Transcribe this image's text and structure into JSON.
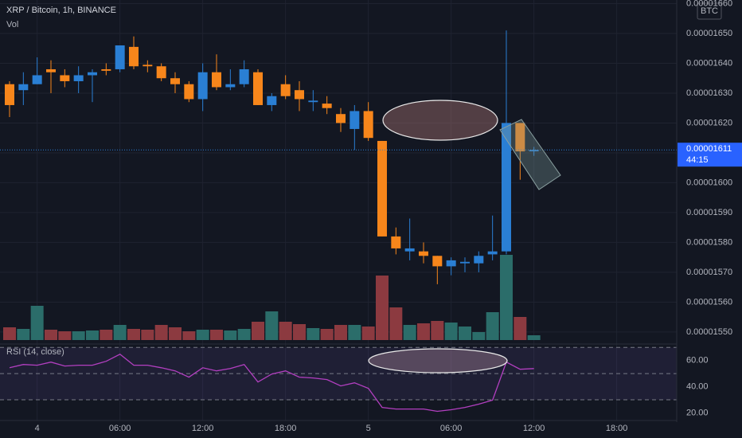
{
  "chart_data": {
    "type": "candlestick",
    "title": "XRP / Bitcoin, 1h, BINANCE",
    "volume_label": "Vol",
    "currency": "BTC",
    "up_color": "#2a7fd4",
    "down_color": "#f7861b",
    "volume_up_color": "#2b6d6a",
    "volume_down_color": "#8c3a40",
    "categories": [
      null,
      null,
      "4",
      null,
      null,
      null,
      null,
      null,
      "06:00",
      null,
      null,
      null,
      null,
      null,
      "12:00",
      null,
      null,
      null,
      null,
      null,
      "18:00",
      null,
      null,
      null,
      null,
      null,
      "5",
      null,
      null,
      null,
      null,
      null,
      "06:00",
      null,
      null,
      null,
      null,
      null,
      "12:00",
      null,
      null,
      null,
      null,
      null,
      "18:00"
    ],
    "open": [
      1.633e-05,
      1.631e-05,
      1.633e-05,
      1.638e-05,
      1.636e-05,
      1.634e-05,
      1.636e-05,
      1.638e-05,
      1.638e-05,
      1.6455e-05,
      1.6395e-05,
      1.639e-05,
      1.635e-05,
      1.633e-05,
      1.628e-05,
      1.637e-05,
      1.632e-05,
      1.633e-05,
      1.637e-05,
      1.626e-05,
      1.633e-05,
      1.631e-05,
      1.627e-05,
      1.6265e-05,
      1.623e-05,
      1.618e-05,
      1.624e-05,
      1.614e-05,
      1.582e-05,
      1.577e-05,
      1.577e-05,
      1.5755e-05,
      1.572e-05,
      1.573e-05,
      1.573e-05,
      1.576e-05,
      1.577e-05,
      1.62e-05,
      1.6105e-05,
      null,
      null,
      null,
      null,
      null,
      null
    ],
    "high": [
      1.634e-05,
      1.637e-05,
      1.642e-05,
      1.641e-05,
      1.638e-05,
      1.639e-05,
      1.638e-05,
      1.64e-05,
      1.646e-05,
      1.649e-05,
      1.641e-05,
      1.64e-05,
      1.637e-05,
      1.634e-05,
      1.64e-05,
      1.643e-05,
      1.638e-05,
      1.641e-05,
      1.638e-05,
      1.63e-05,
      1.636e-05,
      1.634e-05,
      1.631e-05,
      1.629e-05,
      1.625e-05,
      1.626e-05,
      1.627e-05,
      1.614e-05,
      1.585e-05,
      1.588e-05,
      1.58e-05,
      1.5755e-05,
      1.575e-05,
      1.575e-05,
      1.577e-05,
      1.589e-05,
      1.651e-05,
      1.62e-05,
      1.612e-05,
      null,
      null,
      null,
      null,
      null,
      null
    ],
    "low": [
      1.622e-05,
      1.626e-05,
      1.633e-05,
      1.63e-05,
      1.632e-05,
      1.63e-05,
      1.627e-05,
      1.636e-05,
      1.637e-05,
      1.638e-05,
      1.637e-05,
      1.634e-05,
      1.63e-05,
      1.627e-05,
      1.624e-05,
      1.631e-05,
      1.631e-05,
      1.632e-05,
      1.626e-05,
      1.624e-05,
      1.628e-05,
      1.624e-05,
      1.624e-05,
      1.623e-05,
      1.617e-05,
      1.611e-05,
      1.614e-05,
      1.582e-05,
      1.576e-05,
      1.574e-05,
      1.573e-05,
      1.566e-05,
      1.569e-05,
      1.57e-05,
      1.57e-05,
      1.574e-05,
      1.576e-05,
      1.601e-05,
      1.609e-05,
      null,
      null,
      null,
      null,
      null,
      null
    ],
    "close": [
      1.626e-05,
      1.633e-05,
      1.636e-05,
      1.637e-05,
      1.634e-05,
      1.636e-05,
      1.637e-05,
      1.6375e-05,
      1.646e-05,
      1.639e-05,
      1.639e-05,
      1.635e-05,
      1.633e-05,
      1.628e-05,
      1.637e-05,
      1.632e-05,
      1.633e-05,
      1.638e-05,
      1.626e-05,
      1.629e-05,
      1.629e-05,
      1.628e-05,
      1.6275e-05,
      1.625e-05,
      1.62e-05,
      1.624e-05,
      1.615e-05,
      1.582e-05,
      1.578e-05,
      1.578e-05,
      1.5755e-05,
      1.572e-05,
      1.574e-05,
      1.5735e-05,
      1.5755e-05,
      1.577e-05,
      1.62e-05,
      1.6105e-05,
      1.611e-05,
      null,
      null,
      null,
      null,
      null,
      null
    ],
    "volume": [
      16,
      14,
      43,
      13,
      11,
      11,
      12,
      13,
      19,
      14,
      13,
      19,
      16,
      11,
      13,
      13,
      12,
      14,
      23,
      36,
      23,
      20,
      15,
      14,
      19,
      19,
      17,
      81,
      41,
      19,
      21,
      24,
      22,
      17,
      10,
      35,
      107,
      29,
      6,
      null,
      null,
      null,
      null,
      null,
      null
    ],
    "ylim": [
      1.5473e-05,
      1.6612e-05
    ],
    "yticks": [
      {
        "value": 1.66e-05,
        "label": "0.00001660"
      },
      {
        "value": 1.65e-05,
        "label": "0.00001650"
      },
      {
        "value": 1.64e-05,
        "label": "0.00001640"
      },
      {
        "value": 1.63e-05,
        "label": "0.00001630"
      },
      {
        "value": 1.62e-05,
        "label": "0.00001620"
      },
      {
        "value": 1.61e-05,
        "label": "0.00001610"
      },
      {
        "value": 1.6e-05,
        "label": "0.00001600"
      },
      {
        "value": 1.59e-05,
        "label": "0.00001590"
      },
      {
        "value": 1.58e-05,
        "label": "0.00001580"
      },
      {
        "value": 1.57e-05,
        "label": "0.00001570"
      },
      {
        "value": 1.56e-05,
        "label": "0.00001560"
      },
      {
        "value": 1.55e-05,
        "label": "0.00001550"
      }
    ],
    "last_price": {
      "value": 1.611e-05,
      "label": "0.00001611"
    },
    "countdown": "44:15",
    "rsi": {
      "title": "RSI (14, close)",
      "color": "#b23fc0",
      "values": [
        54.5,
        57,
        56.4,
        58.8,
        55.8,
        56.4,
        56.4,
        59.4,
        64.8,
        56.4,
        56.4,
        54.5,
        52.1,
        47.3,
        54.5,
        52.1,
        53.9,
        57,
        43.6,
        49.7,
        52.1,
        47.3,
        46.7,
        45.5,
        40.6,
        43,
        38.8,
        24.2,
        23,
        23,
        23,
        21.2,
        22.4,
        24.2,
        26.7,
        29.7,
        58.8,
        53.3,
        53.9,
        null,
        null,
        null,
        null,
        null,
        null
      ],
      "ylim": [
        13,
        72
      ],
      "yticks": [
        {
          "value": 60,
          "label": "60.00"
        },
        {
          "value": 40,
          "label": "40.00"
        },
        {
          "value": 20,
          "label": "20.00"
        }
      ],
      "bands": [
        70,
        50,
        30
      ]
    }
  }
}
